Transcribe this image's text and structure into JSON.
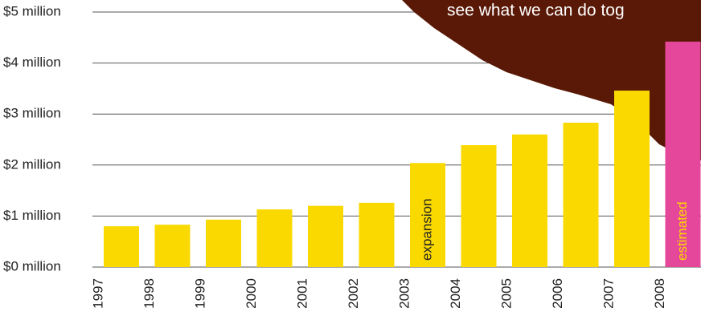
{
  "chart_data": {
    "type": "bar",
    "categories": [
      "1997",
      "1998",
      "1999",
      "2000",
      "2001",
      "2002",
      "2003",
      "2004",
      "2005",
      "2006",
      "2007",
      "2008"
    ],
    "values": [
      0.8,
      0.83,
      0.93,
      1.13,
      1.2,
      1.26,
      2.04,
      2.39,
      2.6,
      2.83,
      3.46,
      4.42
    ],
    "colors": [
      "#fad900",
      "#fad900",
      "#fad900",
      "#fad900",
      "#fad900",
      "#fad900",
      "#fad900",
      "#fad900",
      "#fad900",
      "#fad900",
      "#fad900",
      "#e5479a"
    ],
    "ylim": [
      0,
      5
    ],
    "yticks": [
      {
        "value": 0,
        "label": "$0 million"
      },
      {
        "value": 1,
        "label": "$1 million"
      },
      {
        "value": 2,
        "label": "$2 million"
      },
      {
        "value": 3,
        "label": "$3 million"
      },
      {
        "value": 4,
        "label": "$4 million"
      },
      {
        "value": 5,
        "label": "$5 million"
      }
    ],
    "grid": true,
    "annotations": [
      {
        "text": "expansion",
        "category": "2003",
        "color": "#222222"
      },
      {
        "text": "estimated",
        "category": "2008",
        "color": "#fad900"
      }
    ],
    "banner_text": "see what we can do tog"
  }
}
